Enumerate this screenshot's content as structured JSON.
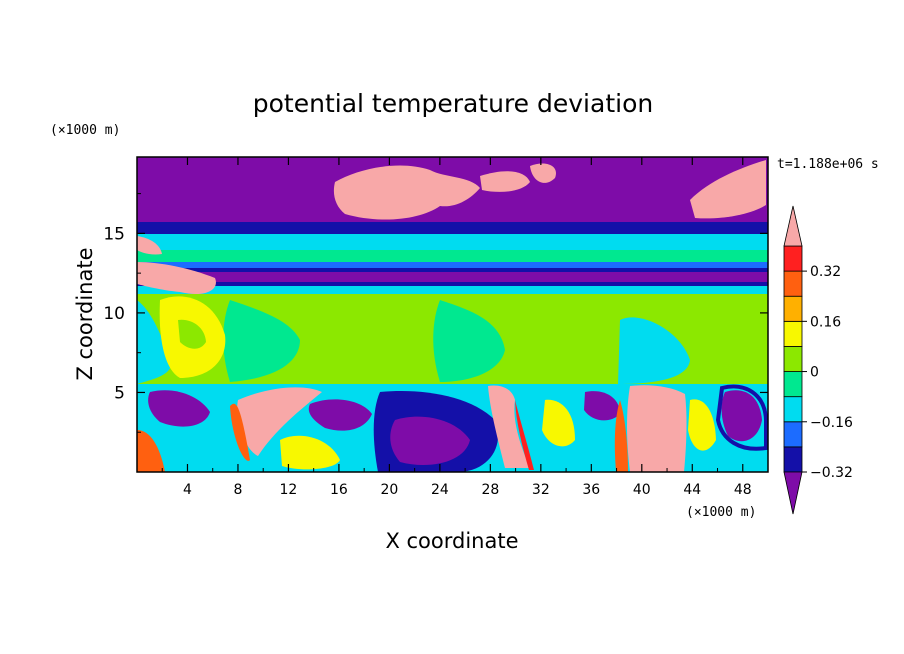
{
  "chart_data": {
    "type": "heatmap",
    "title": "potential temperature deviation",
    "xlabel": "X coordinate",
    "ylabel": "Z coordinate",
    "x_unit": "(×1000 m)",
    "y_unit": "(×1000 m)",
    "time_label": "t=1.188e+06 s",
    "xlim": [
      0,
      50
    ],
    "ylim": [
      0,
      19.8
    ],
    "x_ticks": [
      "4",
      "8",
      "12",
      "16",
      "20",
      "24",
      "28",
      "32",
      "36",
      "40",
      "44",
      "48"
    ],
    "y_ticks": [
      "5",
      "10",
      "15"
    ],
    "colorbar": {
      "levels": [
        -0.4,
        -0.32,
        -0.24,
        -0.16,
        -0.08,
        0,
        0.08,
        0.16,
        0.24,
        0.32,
        0.4
      ],
      "labels": [
        "0.32",
        "0.16",
        "0",
        "−0.16",
        "−0.32"
      ],
      "colors": [
        "#7e0ca8",
        "#1410a8",
        "#1c6cff",
        "#00dcf0",
        "#00e890",
        "#8ce800",
        "#f8f800",
        "#ffb000",
        "#ff6010",
        "#ff2020",
        "#f8a8a8"
      ],
      "extend": "both"
    },
    "grid": false
  }
}
